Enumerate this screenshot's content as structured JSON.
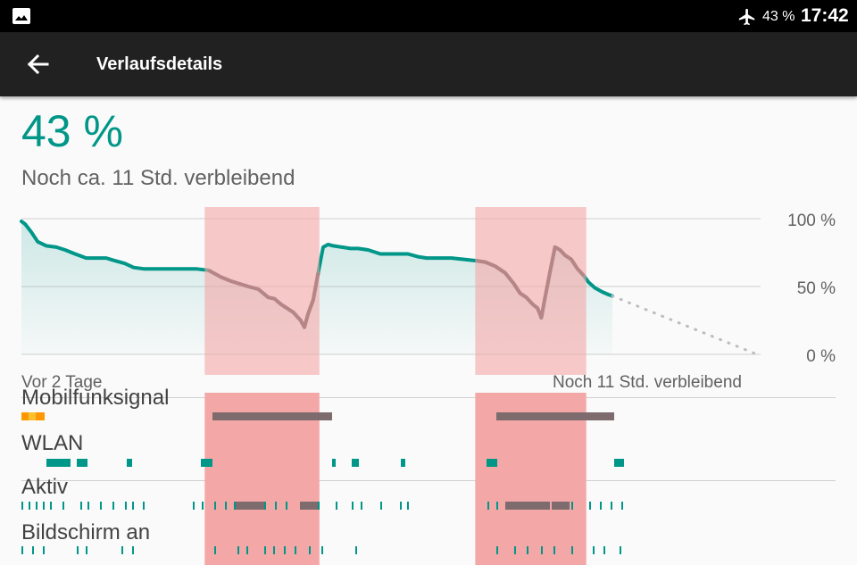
{
  "status_bar": {
    "icons": [
      "image-icon",
      "airplane-mode-icon"
    ],
    "battery_label": "43 %",
    "time": "17:42"
  },
  "toolbar": {
    "back_icon": "arrow-back-icon",
    "title": "Verlaufsdetails"
  },
  "battery": {
    "percent_label": "43 %",
    "remaining_label": "Noch ca. 11 Std. verbleibend"
  },
  "chart_data": {
    "type": "line",
    "y_tick_labels": [
      "100 %",
      "50 %",
      "0 %"
    ],
    "ylim": [
      0,
      100
    ],
    "x_start_label": "Vor 2 Tage",
    "x_end_label": "Noch 11 Std. verbleibend",
    "x_units": "hours since start (0 = Vor 2 Tage)",
    "xlim": [
      0,
      59
    ],
    "series": [
      {
        "x": [
          0,
          0.3,
          0.8,
          1.3,
          2,
          2.8,
          3.5,
          4.3,
          5.2,
          6,
          6.8,
          7.5,
          8.3,
          9,
          9.8,
          11,
          12,
          13,
          14,
          15,
          16,
          16.8,
          17.5,
          18.2,
          19,
          19.8,
          20.3,
          20.8,
          21.3,
          21.8,
          22.4,
          22.7,
          23,
          23.4,
          23.8,
          24.2,
          24.6,
          25,
          25.7,
          26.4,
          27,
          27.8,
          28.8,
          30,
          31,
          31.8,
          32.5,
          33.5,
          34.5,
          35.5,
          36.5,
          37.2,
          38,
          38.8,
          39.5,
          40,
          40.5,
          41,
          41.4,
          41.7,
          42,
          42.4,
          42.8,
          43.2,
          43.6,
          44.1,
          44.6,
          45.1,
          45.5,
          46,
          46.6,
          47.1,
          47.4
        ],
        "y": [
          98,
          96,
          90,
          83,
          80,
          79,
          77,
          74,
          71,
          71,
          71,
          69,
          67,
          64,
          63,
          63,
          63,
          63,
          63,
          62,
          57,
          54,
          52,
          50,
          48,
          42,
          41,
          37,
          34,
          31,
          25,
          20,
          30,
          40,
          60,
          79,
          81,
          80,
          79,
          78,
          78,
          77,
          74,
          74,
          74,
          72,
          71,
          71,
          71,
          70,
          69,
          68,
          65,
          60,
          52,
          45,
          42,
          37,
          34,
          27,
          42,
          61,
          79,
          77,
          73,
          70,
          63,
          58,
          53,
          49,
          46,
          44,
          43
        ],
        "color": "#009688"
      }
    ],
    "prediction": {
      "x": [
        47.4,
        59
      ],
      "y": [
        43,
        0
      ],
      "style": "dotted"
    },
    "highlight_ranges": [
      [
        14.7,
        23.9
      ],
      [
        36.4,
        45.3
      ]
    ],
    "grid": true
  },
  "usage_rows": [
    {
      "label": "Mobilfunksignal"
    },
    {
      "label": "WLAN"
    },
    {
      "label": "Aktiv"
    },
    {
      "label": "Bildschirm an"
    }
  ],
  "colors": {
    "accent": "#009688",
    "charging_line": "#5d5354",
    "highlight": "#f4a7a7",
    "appbar": "#212121",
    "statusbar": "#000000"
  }
}
